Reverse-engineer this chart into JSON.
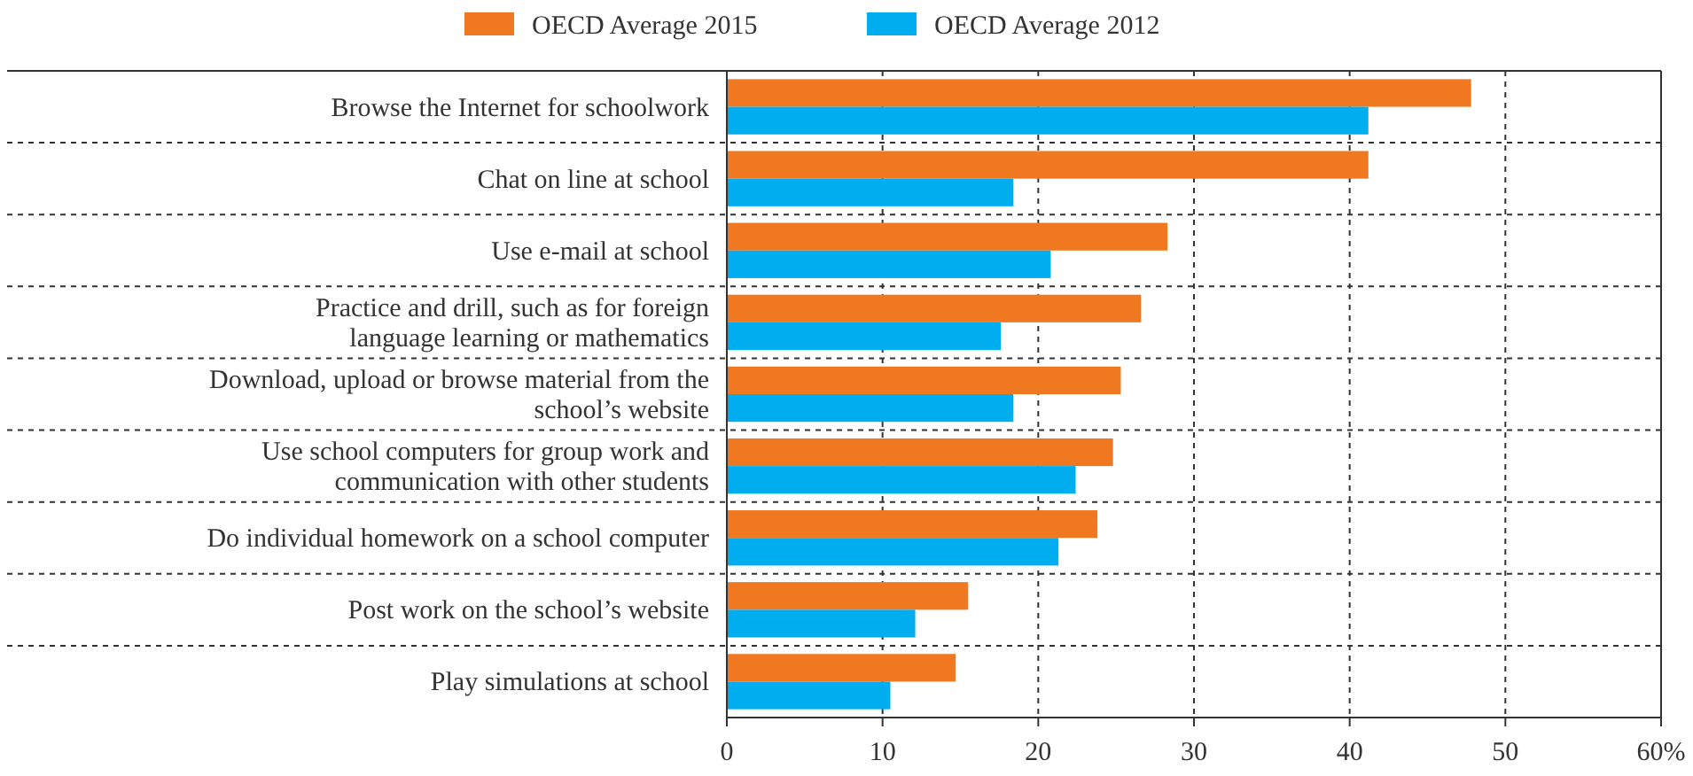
{
  "chart_data": {
    "type": "bar",
    "orientation": "horizontal",
    "categories": [
      "Browse the Internet for schoolwork",
      "Chat on line at school",
      "Use e-mail at school",
      "Practice and drill, such as for foreign language learning or mathematics",
      "Download, upload or browse material from the school’s website",
      "Use school computers for group work and communication with other students",
      "Do individual homework on a school computer",
      "Post work on the school’s website",
      "Play simulations at school"
    ],
    "series": [
      {
        "name": "OECD Average 2015",
        "color": "#f07820",
        "values": [
          47.8,
          41.2,
          28.3,
          26.6,
          25.3,
          24.8,
          23.8,
          15.5,
          14.7
        ]
      },
      {
        "name": "OECD Average 2012",
        "color": "#00aeef",
        "values": [
          41.2,
          18.4,
          20.8,
          17.6,
          18.4,
          22.4,
          21.3,
          12.1,
          10.5
        ]
      }
    ],
    "xlim": [
      0,
      60
    ],
    "xticks": [
      0,
      10,
      20,
      30,
      40,
      50,
      {
        "value": 60,
        "label": "60%"
      }
    ],
    "grid": true,
    "legend": "top"
  }
}
